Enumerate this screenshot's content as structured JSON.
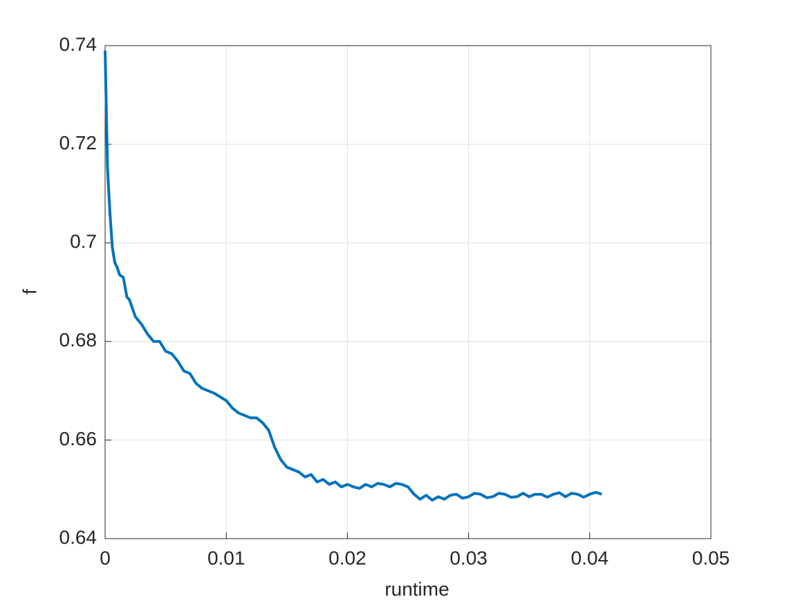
{
  "chart_data": {
    "type": "line",
    "xlabel": "runtime",
    "ylabel": "f",
    "x": [
      0,
      0.0002,
      0.0004,
      0.0006,
      0.0008,
      0.001,
      0.0012,
      0.0015,
      0.0018,
      0.002,
      0.0025,
      0.003,
      0.0035,
      0.004,
      0.0045,
      0.005,
      0.0055,
      0.006,
      0.0065,
      0.007,
      0.0075,
      0.008,
      0.009,
      0.01,
      0.0105,
      0.011,
      0.012,
      0.0125,
      0.013,
      0.0135,
      0.014,
      0.0145,
      0.015,
      0.016,
      0.0165,
      0.017,
      0.0175,
      0.018,
      0.0185,
      0.019,
      0.0195,
      0.02,
      0.0205,
      0.021,
      0.0215,
      0.022,
      0.0225,
      0.023,
      0.0235,
      0.024,
      0.0245,
      0.025,
      0.0255,
      0.026,
      0.0265,
      0.027,
      0.0275,
      0.028,
      0.0285,
      0.029,
      0.0295,
      0.03,
      0.0305,
      0.031,
      0.0315,
      0.032,
      0.0325,
      0.033,
      0.0335,
      0.034,
      0.0345,
      0.035,
      0.0355,
      0.036,
      0.0365,
      0.037,
      0.0375,
      0.038,
      0.0385,
      0.039,
      0.0395,
      0.04,
      0.0405,
      0.041
    ],
    "series": [
      {
        "name": "f",
        "color": "#0072bd",
        "values": [
          0.739,
          0.715,
          0.706,
          0.699,
          0.696,
          0.695,
          0.6935,
          0.693,
          0.689,
          0.6885,
          0.685,
          0.6835,
          0.6815,
          0.68,
          0.68,
          0.678,
          0.6775,
          0.676,
          0.674,
          0.6735,
          0.6715,
          0.6705,
          0.6695,
          0.668,
          0.6665,
          0.6655,
          0.6645,
          0.6645,
          0.6635,
          0.662,
          0.6585,
          0.656,
          0.6545,
          0.6535,
          0.6525,
          0.653,
          0.6515,
          0.652,
          0.651,
          0.6515,
          0.6505,
          0.651,
          0.6505,
          0.6502,
          0.651,
          0.6505,
          0.6512,
          0.651,
          0.6505,
          0.6512,
          0.651,
          0.6505,
          0.649,
          0.648,
          0.6488,
          0.6478,
          0.6485,
          0.648,
          0.6488,
          0.649,
          0.6482,
          0.6485,
          0.6492,
          0.649,
          0.6483,
          0.6485,
          0.6492,
          0.649,
          0.6484,
          0.6485,
          0.6492,
          0.6485,
          0.649,
          0.649,
          0.6484,
          0.649,
          0.6493,
          0.6485,
          0.6492,
          0.649,
          0.6484,
          0.649,
          0.6494,
          0.649
        ]
      }
    ],
    "xlim": [
      0,
      0.05
    ],
    "ylim": [
      0.64,
      0.74
    ],
    "xticks": [
      0,
      0.01,
      0.02,
      0.03,
      0.04,
      0.05
    ],
    "yticks": [
      0.64,
      0.66,
      0.68,
      0.7,
      0.72,
      0.74
    ],
    "grid": true
  }
}
